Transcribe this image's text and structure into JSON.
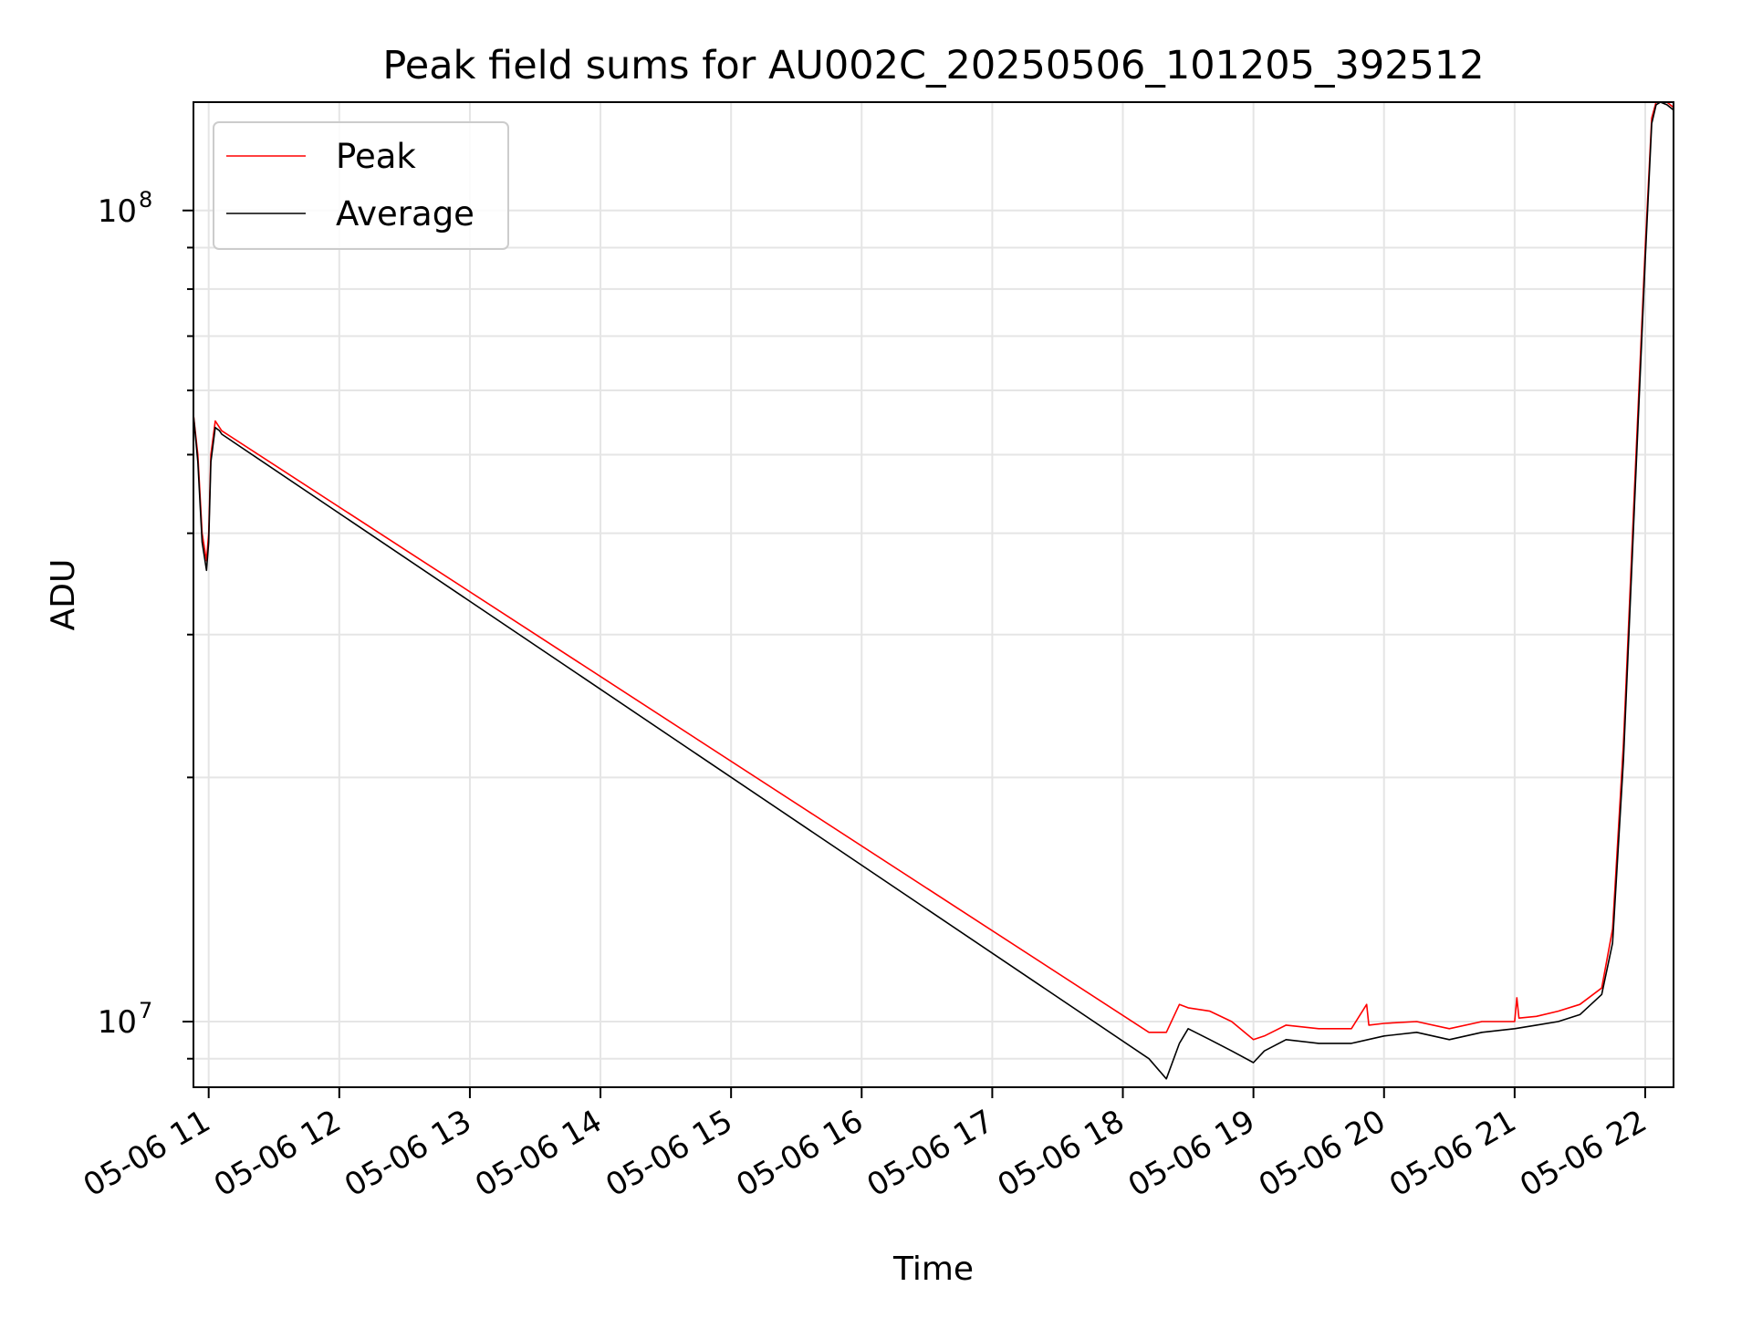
{
  "chart_data": {
    "type": "line",
    "title": "Peak field sums for AU002C_20250506_101205_392512",
    "xlabel": "Time",
    "ylabel": "ADU",
    "x_tick_labels": [
      "05-06 11",
      "05-06 12",
      "05-06 13",
      "05-06 14",
      "05-06 15",
      "05-06 16",
      "05-06 17",
      "05-06 18",
      "05-06 19",
      "05-06 20",
      "05-06 21",
      "05-06 22"
    ],
    "x_ticks": [
      "2025-05-06T11:00",
      "2025-05-06T12:00",
      "2025-05-06T13:00",
      "2025-05-06T14:00",
      "2025-05-06T15:00",
      "2025-05-06T16:00",
      "2025-05-06T17:00",
      "2025-05-06T18:00",
      "2025-05-06T19:00",
      "2025-05-06T20:00",
      "2025-05-06T21:00",
      "2025-05-06T22:00"
    ],
    "xlim": [
      "2025-05-06T10:53",
      "2025-05-06T22:13"
    ],
    "y_scale": "log",
    "ylim": [
      8300000,
      136000000
    ],
    "y_major_ticks": [
      {
        "value": 10000000,
        "base": "10",
        "exp": "7"
      },
      {
        "value": 100000000,
        "base": "10",
        "exp": "8"
      }
    ],
    "grid": true,
    "legend_position": "top-left",
    "colors": {
      "peak": "#ff0000",
      "average": "#000000",
      "grid": "#e5e5e5"
    },
    "series": [
      {
        "name": "Peak",
        "color": "#ff0000",
        "x": [
          "2025-05-06T10:53",
          "2025-05-06T10:55",
          "2025-05-06T10:57",
          "2025-05-06T10:59",
          "2025-05-06T11:00",
          "2025-05-06T11:01",
          "2025-05-06T11:03",
          "2025-05-06T11:05",
          "2025-05-06T11:06",
          "2025-05-06T18:12",
          "2025-05-06T18:20",
          "2025-05-06T18:26",
          "2025-05-06T18:30",
          "2025-05-06T18:40",
          "2025-05-06T18:50",
          "2025-05-06T19:00",
          "2025-05-06T19:05",
          "2025-05-06T19:15",
          "2025-05-06T19:30",
          "2025-05-06T19:45",
          "2025-05-06T19:52",
          "2025-05-06T19:53",
          "2025-05-06T20:00",
          "2025-05-06T20:15",
          "2025-05-06T20:30",
          "2025-05-06T20:45",
          "2025-05-06T21:00",
          "2025-05-06T21:01",
          "2025-05-06T21:02",
          "2025-05-06T21:10",
          "2025-05-06T21:20",
          "2025-05-06T21:30",
          "2025-05-06T21:40",
          "2025-05-06T21:45",
          "2025-05-06T21:50",
          "2025-05-06T21:55",
          "2025-05-06T22:00",
          "2025-05-06T22:03",
          "2025-05-06T22:05",
          "2025-05-06T22:07",
          "2025-05-06T22:10",
          "2025-05-06T22:13"
        ],
        "y": [
          56000000,
          50000000,
          40000000,
          37000000,
          40000000,
          50000000,
          55000000,
          54000000,
          53500000,
          9700000,
          9700000,
          10500000,
          10400000,
          10300000,
          10000000,
          9500000,
          9600000,
          9900000,
          9800000,
          9800000,
          10500000,
          9900000,
          9950000,
          10000000,
          9800000,
          10000000,
          10000000,
          10700000,
          10100000,
          10150000,
          10300000,
          10500000,
          11000000,
          13000000,
          22000000,
          45000000,
          90000000,
          130000000,
          136000000,
          136000000,
          136000000,
          134000000
        ]
      },
      {
        "name": "Average",
        "color": "#000000",
        "x": [
          "2025-05-06T10:53",
          "2025-05-06T10:55",
          "2025-05-06T10:57",
          "2025-05-06T10:59",
          "2025-05-06T11:00",
          "2025-05-06T11:01",
          "2025-05-06T11:03",
          "2025-05-06T11:05",
          "2025-05-06T11:06",
          "2025-05-06T18:12",
          "2025-05-06T18:20",
          "2025-05-06T18:26",
          "2025-05-06T18:30",
          "2025-05-06T18:40",
          "2025-05-06T18:50",
          "2025-05-06T19:00",
          "2025-05-06T19:05",
          "2025-05-06T19:15",
          "2025-05-06T19:30",
          "2025-05-06T19:45",
          "2025-05-06T20:00",
          "2025-05-06T20:15",
          "2025-05-06T20:30",
          "2025-05-06T20:45",
          "2025-05-06T21:00",
          "2025-05-06T21:10",
          "2025-05-06T21:20",
          "2025-05-06T21:30",
          "2025-05-06T21:40",
          "2025-05-06T21:45",
          "2025-05-06T21:50",
          "2025-05-06T21:55",
          "2025-05-06T22:00",
          "2025-05-06T22:03",
          "2025-05-06T22:05",
          "2025-05-06T22:07",
          "2025-05-06T22:10",
          "2025-05-06T22:13"
        ],
        "y": [
          56000000,
          49000000,
          39000000,
          36000000,
          39000000,
          49000000,
          54000000,
          53500000,
          53000000,
          9000000,
          8500000,
          9400000,
          9800000,
          9500000,
          9200000,
          8900000,
          9200000,
          9500000,
          9400000,
          9400000,
          9600000,
          9700000,
          9500000,
          9700000,
          9800000,
          9900000,
          10000000,
          10200000,
          10800000,
          12500000,
          21000000,
          43000000,
          87000000,
          128000000,
          135000000,
          136000000,
          135000000,
          133000000
        ]
      }
    ]
  }
}
